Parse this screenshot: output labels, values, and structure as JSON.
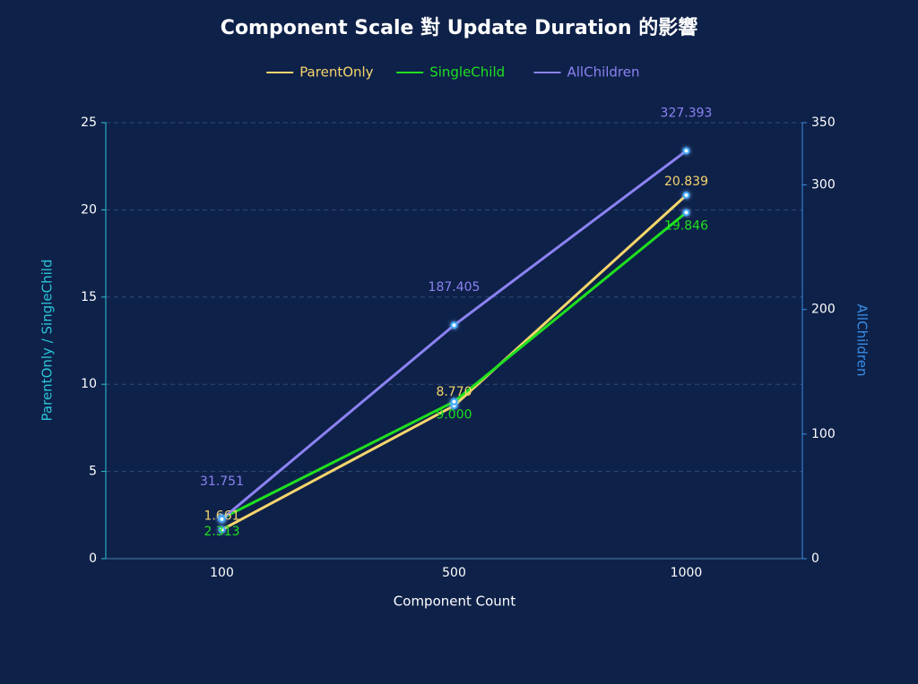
{
  "chart_data": {
    "type": "line",
    "title": "Component Scale 對 Update Duration 的影響",
    "x_label": "Component Count",
    "y_label": "ParentOnly / SingleChild",
    "y2_label": "AllChildren",
    "categories": [
      "100",
      "500",
      "1000"
    ],
    "ylim": [
      0,
      25
    ],
    "yticks": [
      0,
      5,
      10,
      15,
      20,
      25
    ],
    "y2lim": [
      0,
      350
    ],
    "y2ticks": [
      0,
      100,
      200,
      300,
      350
    ],
    "grid": true,
    "legend_position": "top",
    "series": [
      {
        "name": "ParentOnly",
        "color": "#f7d66b",
        "values": [
          1.661,
          8.77,
          20.839
        ],
        "value_labels": [
          "1.661",
          "8.770",
          "20.839"
        ],
        "label_position": "above"
      },
      {
        "name": "SingleChild",
        "color": "#1fe01f",
        "values": [
          2.313,
          9,
          19.846
        ],
        "value_labels": [
          "2.313",
          "9.000",
          "19.846"
        ],
        "label_position": "below"
      },
      {
        "name": "AllChildren",
        "color": "#8c82f2",
        "axis": "y2",
        "values": [
          31.751,
          187.405,
          327.393
        ],
        "value_labels": [
          "31.751",
          "187.405",
          "327.393"
        ],
        "label_position": "above"
      }
    ]
  }
}
